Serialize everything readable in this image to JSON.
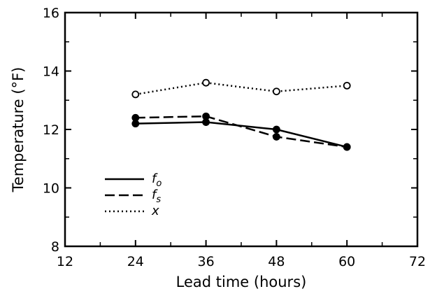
{
  "chart_data": {
    "type": "line",
    "xlabel": "Lead time (hours)",
    "ylabel": "Temperature (°F)",
    "xlim": [
      12,
      72
    ],
    "ylim": [
      8,
      16
    ],
    "x_ticks": [
      12,
      24,
      36,
      48,
      60,
      72
    ],
    "y_ticks": [
      8,
      10,
      12,
      14,
      16
    ],
    "grid": false,
    "legend_position": "bottom-left",
    "x": [
      24,
      36,
      48,
      60
    ],
    "series": [
      {
        "name": "f",
        "subscript": "o",
        "values": [
          12.2,
          12.25,
          12.0,
          11.4
        ],
        "line_style": "solid",
        "marker": "filled-circle"
      },
      {
        "name": "f",
        "subscript": "s",
        "values": [
          12.4,
          12.45,
          11.75,
          11.4
        ],
        "line_style": "dashed",
        "marker": "filled-circle"
      },
      {
        "name": "x",
        "subscript": "",
        "values": [
          13.2,
          13.6,
          13.3,
          13.5
        ],
        "line_style": "dotted",
        "marker": "open-circle"
      }
    ]
  }
}
